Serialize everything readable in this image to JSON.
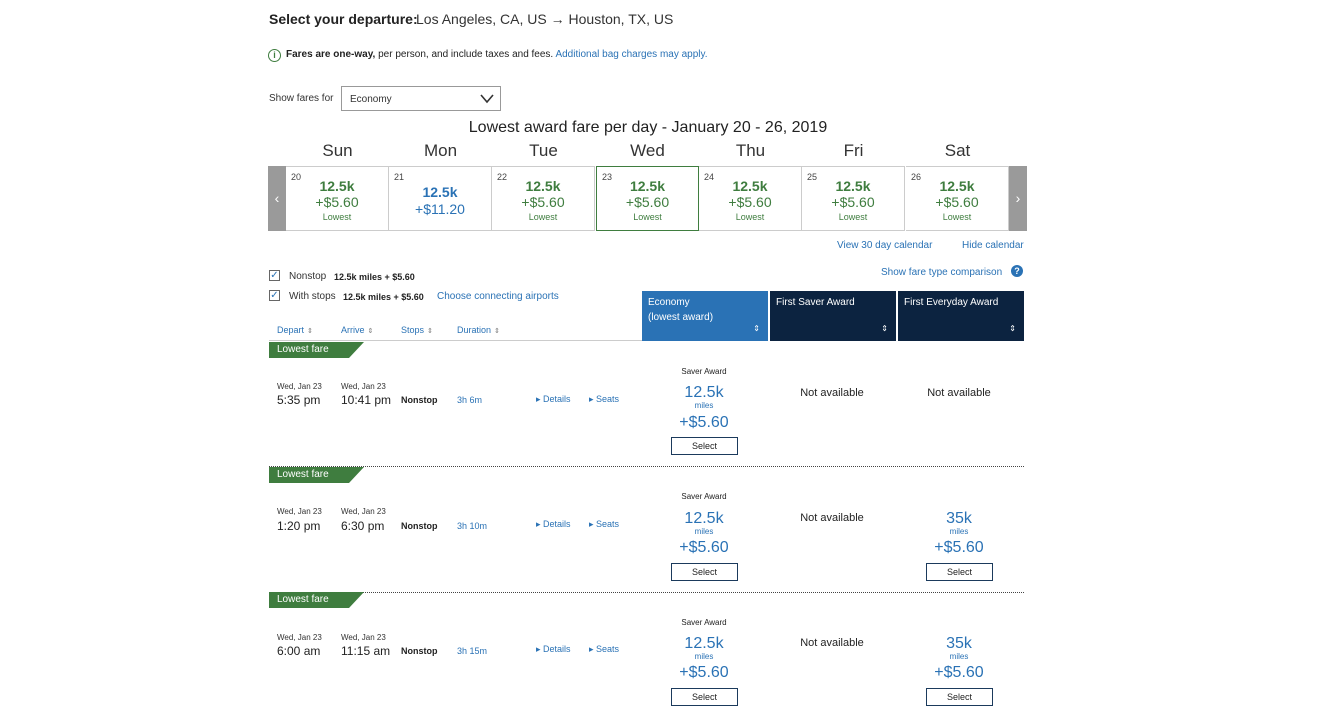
{
  "header": {
    "label": "Select your departure:",
    "route": "Los Angeles, CA, US → Houston, TX, US"
  },
  "info": {
    "bold": "Fares are one-way,",
    "text": " per person, and include taxes and fees. ",
    "link": "Additional bag charges may apply."
  },
  "fare_filter": {
    "label": "Show fares for",
    "selected": "Economy"
  },
  "calendar": {
    "title": "Lowest award fare per day - January 20 - 26, 2019",
    "days": [
      {
        "dow": "Sun",
        "date": "20",
        "miles": "12.5k",
        "taxes": "+$5.60",
        "note": "Lowest"
      },
      {
        "dow": "Mon",
        "date": "21",
        "miles": "12.5k",
        "taxes": "+$11.20",
        "note": ""
      },
      {
        "dow": "Tue",
        "date": "22",
        "miles": "12.5k",
        "taxes": "+$5.60",
        "note": "Lowest"
      },
      {
        "dow": "Wed",
        "date": "23",
        "miles": "12.5k",
        "taxes": "+$5.60",
        "note": "Lowest"
      },
      {
        "dow": "Thu",
        "date": "24",
        "miles": "12.5k",
        "taxes": "+$5.60",
        "note": "Lowest"
      },
      {
        "dow": "Fri",
        "date": "25",
        "miles": "12.5k",
        "taxes": "+$5.60",
        "note": "Lowest"
      },
      {
        "dow": "Sat",
        "date": "26",
        "miles": "12.5k",
        "taxes": "+$5.60",
        "note": "Lowest"
      }
    ],
    "view30": "View 30 day calendar",
    "hide": "Hide calendar",
    "compare": "Show fare type comparison"
  },
  "filters": {
    "nonstop_label": "Nonstop",
    "nonstop_value": "12.5k miles + $5.60",
    "stops_label": "With stops",
    "stops_value": "12.5k miles + $5.60",
    "connecting": "Choose connecting airports"
  },
  "columns": {
    "depart": "Depart",
    "arrive": "Arrive",
    "stops": "Stops",
    "duration": "Duration",
    "economy_line1": "Economy",
    "economy_line2": "(lowest award)",
    "first_saver": "First Saver Award",
    "first_everyday": "First Everyday Award"
  },
  "colors": {
    "green": "#3f7d3f",
    "blue": "#2a72b5",
    "navy": "#0c2340",
    "economy_header": "#2a72b5"
  },
  "flights": [
    {
      "badge": "Lowest fare",
      "depart_date": "Wed, Jan 23",
      "depart_time": "5:35 pm",
      "arrive_date": "Wed, Jan 23",
      "arrive_time": "10:41 pm",
      "stops": "Nonstop",
      "duration": "3h 6m",
      "details": "Details",
      "seats": "Seats",
      "economy": {
        "type": "Saver Award",
        "miles": "12.5k",
        "unit": "miles",
        "taxes": "+$5.60",
        "button": "Select"
      },
      "first_saver": "Not available",
      "first_everyday": "Not available"
    },
    {
      "badge": "Lowest fare",
      "depart_date": "Wed, Jan 23",
      "depart_time": "1:20 pm",
      "arrive_date": "Wed, Jan 23",
      "arrive_time": "6:30 pm",
      "stops": "Nonstop",
      "duration": "3h 10m",
      "details": "Details",
      "seats": "Seats",
      "economy": {
        "type": "Saver Award",
        "miles": "12.5k",
        "unit": "miles",
        "taxes": "+$5.60",
        "button": "Select"
      },
      "first_saver": "Not available",
      "first_everyday": {
        "miles": "35k",
        "unit": "miles",
        "taxes": "+$5.60",
        "button": "Select"
      }
    },
    {
      "badge": "Lowest fare",
      "depart_date": "Wed, Jan 23",
      "depart_time": "6:00 am",
      "arrive_date": "Wed, Jan 23",
      "arrive_time": "11:15 am",
      "stops": "Nonstop",
      "duration": "3h 15m",
      "details": "Details",
      "seats": "Seats",
      "economy": {
        "type": "Saver Award",
        "miles": "12.5k",
        "unit": "miles",
        "taxes": "+$5.60",
        "button": "Select"
      },
      "first_saver": "Not available",
      "first_everyday": {
        "miles": "35k",
        "unit": "miles",
        "taxes": "+$5.60",
        "button": "Select"
      }
    }
  ]
}
